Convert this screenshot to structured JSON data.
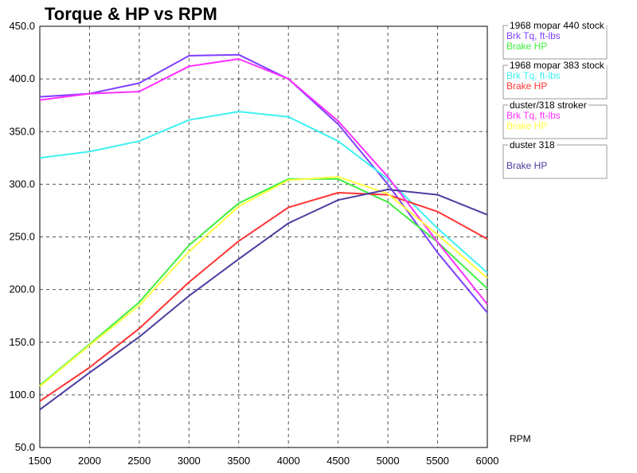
{
  "chart_data": {
    "type": "line",
    "title": "Torque & HP vs RPM",
    "xlabel": "RPM",
    "ylabel": "",
    "x": [
      1500,
      2000,
      2500,
      3000,
      3500,
      4000,
      4500,
      5000,
      5500,
      6000
    ],
    "xlim": [
      1500,
      6000
    ],
    "ylim": [
      50,
      450
    ],
    "x_ticks": [
      "1500",
      "2000",
      "2500",
      "3000",
      "3500",
      "4000",
      "4500",
      "5000",
      "5500",
      "6000"
    ],
    "y_ticks": [
      "50.0",
      "100.0",
      "150.0",
      "200.0",
      "250.0",
      "300.0",
      "350.0",
      "400.0",
      "450.0"
    ],
    "grid": true,
    "legend_position": "right",
    "legend_groups": [
      {
        "title": "1968 mopar 440 stock",
        "entries": [
          {
            "label": "Brk Tq, ft-lbs",
            "series": 0
          },
          {
            "label": "Brake HP",
            "series": 1
          }
        ]
      },
      {
        "title": "1968 mopar 383 stock",
        "entries": [
          {
            "label": "Brk Tq, ft-lbs",
            "series": 2
          },
          {
            "label": "Brake HP",
            "series": 3
          }
        ]
      },
      {
        "title": "duster/318 stroker",
        "entries": [
          {
            "label": "Brk Tq, ft-lbs",
            "series": 4
          },
          {
            "label": "Brake HP",
            "series": 5
          }
        ]
      },
      {
        "title": "duster 318",
        "entries": [
          {
            "label": "",
            "series": null
          },
          {
            "label": "Brake HP",
            "series": 6
          }
        ]
      }
    ],
    "series": [
      {
        "color": "#7f3fff",
        "values": [
          383,
          386,
          396,
          422,
          423,
          400,
          357,
          300,
          235,
          178
        ]
      },
      {
        "color": "#3fef3f",
        "values": [
          109,
          148,
          188,
          242,
          282,
          305,
          305,
          283,
          245,
          201
        ]
      },
      {
        "color": "#3ff0f0",
        "values": [
          325,
          331,
          341,
          361,
          369,
          364,
          341,
          305,
          258,
          216
        ]
      },
      {
        "color": "#ff3535",
        "values": [
          94,
          126,
          163,
          207,
          246,
          278,
          292,
          290,
          274,
          248
        ]
      },
      {
        "color": "#ff2fff",
        "values": [
          380,
          386,
          388,
          412,
          419,
          400,
          360,
          307,
          245,
          186
        ]
      },
      {
        "color": "#ffff3f",
        "values": [
          108,
          147,
          185,
          236,
          279,
          304,
          307,
          291,
          252,
          211
        ]
      },
      {
        "color": "#4b3da0",
        "values": [
          86,
          121,
          155,
          194,
          229,
          263,
          285,
          295,
          290,
          271
        ]
      }
    ]
  }
}
